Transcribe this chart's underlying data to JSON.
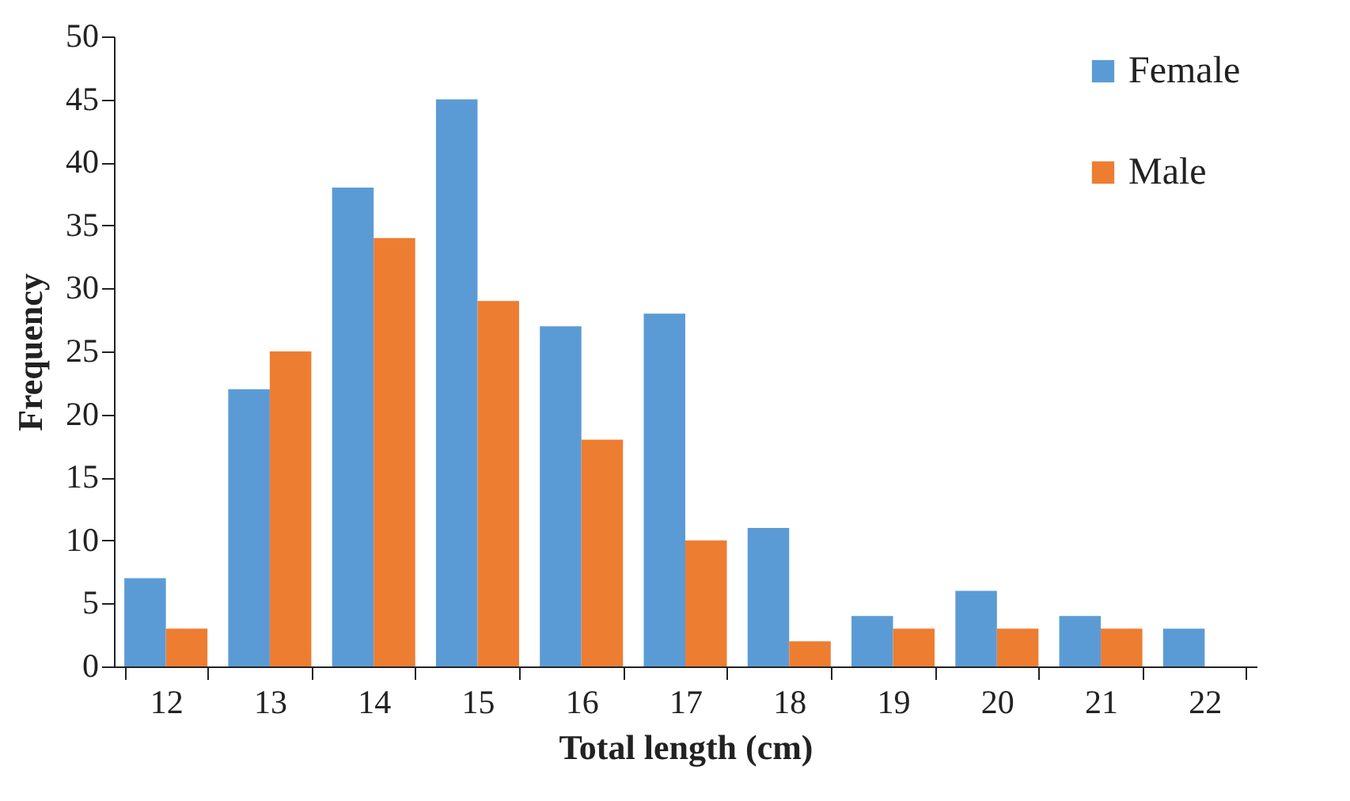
{
  "chart_data": {
    "type": "bar",
    "xlabel": "Total length (cm)",
    "ylabel": "Frequency",
    "categories": [
      "12",
      "13",
      "14",
      "15",
      "16",
      "17",
      "18",
      "19",
      "20",
      "21",
      "22"
    ],
    "series": [
      {
        "name": "Female",
        "color": "#5b9bd5",
        "values": [
          7,
          22,
          38,
          45,
          27,
          28,
          11,
          4,
          6,
          4,
          3
        ]
      },
      {
        "name": "Male",
        "color": "#ed7d31",
        "values": [
          3,
          25,
          34,
          29,
          18,
          10,
          2,
          3,
          3,
          3,
          null
        ]
      }
    ],
    "ylim": [
      0,
      50
    ],
    "yticks": [
      0,
      5,
      10,
      15,
      20,
      25,
      30,
      35,
      40,
      45,
      50
    ],
    "grid": false,
    "legend": "top right"
  }
}
